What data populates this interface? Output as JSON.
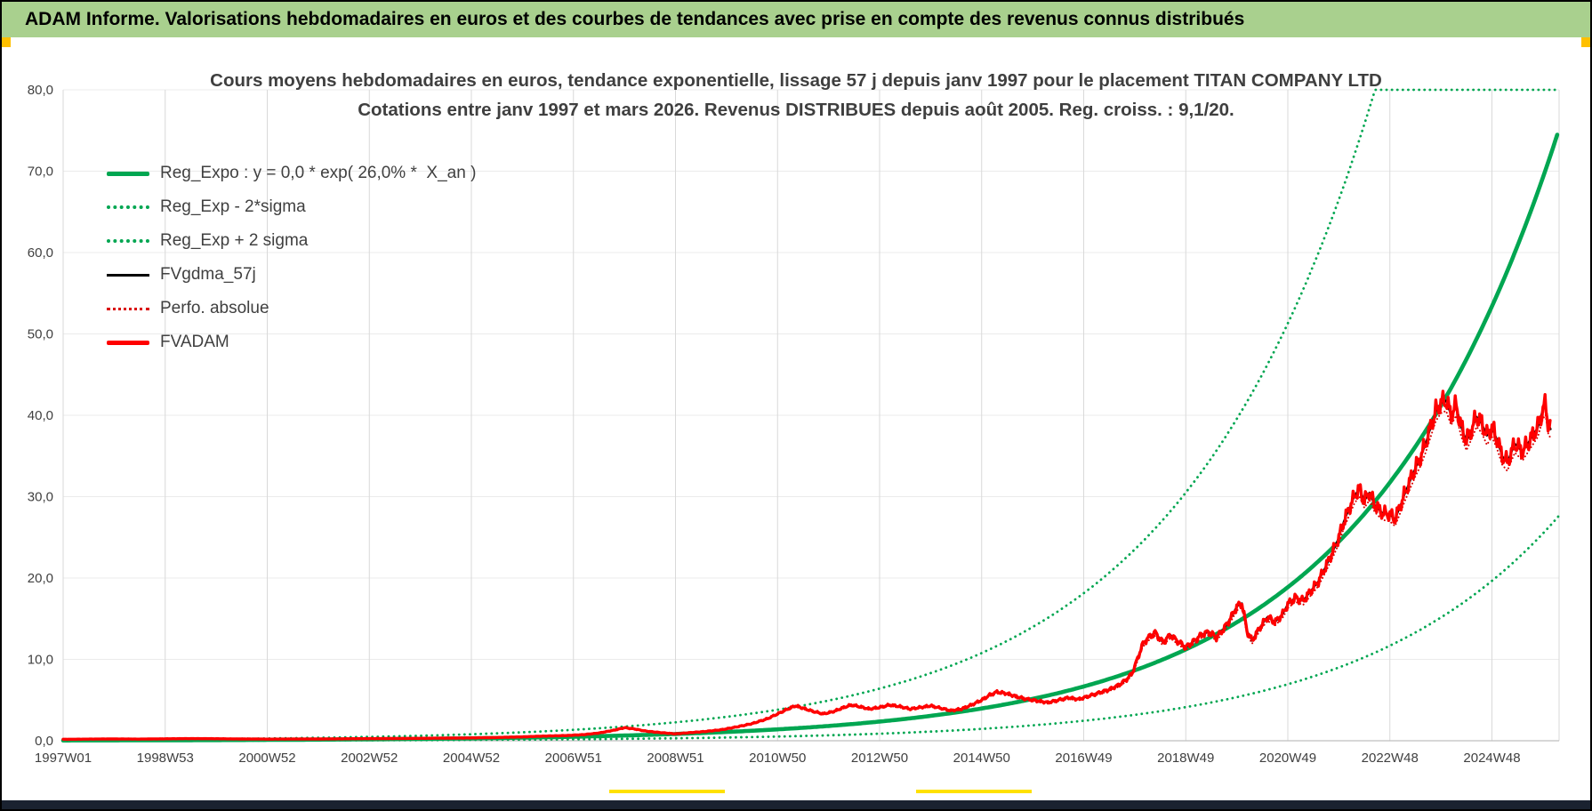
{
  "header": {
    "title": "ADAM Informe. Valorisations hebdomadaires en euros et des courbes de tendances avec prise en compte des revenus connus distribués"
  },
  "chart": {
    "title_line1": "Cours moyens hebdomadaires en euros, tendance exponentielle, lissage 57 j depuis janv 1997 pour le placement TITAN COMPANY LTD",
    "title_line2": "Cotations entre janv 1997 et mars 2026. Revenus DISTRIBUES depuis août 2005. Reg. croiss. : 9,1/20."
  },
  "legend": {
    "items": [
      {
        "label": "Reg_Expo : y = 0,0 * exp( 26,0% *  X_an )",
        "swatch": "green-solid"
      },
      {
        "label": "Reg_Exp - 2*sigma",
        "swatch": "green-dotted"
      },
      {
        "label": "Reg_Exp + 2 sigma",
        "swatch": "green-dotted"
      },
      {
        "label": "FVgdma_57j",
        "swatch": "black-solid"
      },
      {
        "label": "Perfo. absolue",
        "swatch": "red-dotted"
      },
      {
        "label": "FVADAM",
        "swatch": "red-solid"
      }
    ]
  },
  "colors": {
    "header_bg": "#A9D08E",
    "trend_green": "#00A651",
    "fvadam_red": "#FF0000",
    "smooth_black": "#000000",
    "accent_yellow": "#FFC000",
    "gridline": "#D9D9D9"
  },
  "chart_data": {
    "type": "line",
    "title": "Cours moyens hebdomadaires en euros, tendance exponentielle, lissage 57 j depuis janv 1997 pour le placement TITAN COMPANY LTD",
    "subtitle": "Cotations entre janv 1997 et mars 2026. Revenus DISTRIBUES depuis août 2005. Reg. croiss. : 9,1/20.",
    "x_axis": {
      "range_years": [
        1996.85,
        2026.35
      ],
      "gridlines": true,
      "ticks": [
        {
          "label": "1997W01",
          "year": 1997
        },
        {
          "label": "1998W53",
          "year": 1999
        },
        {
          "label": "2000W52",
          "year": 2001
        },
        {
          "label": "2002W52",
          "year": 2003
        },
        {
          "label": "2004W52",
          "year": 2005
        },
        {
          "label": "2006W51",
          "year": 2007
        },
        {
          "label": "2008W51",
          "year": 2009
        },
        {
          "label": "2010W50",
          "year": 2011
        },
        {
          "label": "2012W50",
          "year": 2013
        },
        {
          "label": "2014W50",
          "year": 2015
        },
        {
          "label": "2016W49",
          "year": 2017
        },
        {
          "label": "2018W49",
          "year": 2019
        },
        {
          "label": "2020W49",
          "year": 2021
        },
        {
          "label": "2022W48",
          "year": 2023
        },
        {
          "label": "2024W48",
          "year": 2025
        }
      ]
    },
    "y_axis": {
      "range": [
        0,
        80
      ],
      "gridlines": true,
      "ticks": [
        {
          "label": "0,0",
          "value": 0
        },
        {
          "label": "10,0",
          "value": 10
        },
        {
          "label": "20,0",
          "value": 20
        },
        {
          "label": "30,0",
          "value": 30
        },
        {
          "label": "40,0",
          "value": 40
        },
        {
          "label": "50,0",
          "value": 50
        },
        {
          "label": "60,0",
          "value": 60
        },
        {
          "label": "70,0",
          "value": 70
        },
        {
          "label": "80,0",
          "value": 80
        }
      ]
    },
    "regression": {
      "equation": "y = 0,0 * exp( 26,0% * X_an )",
      "a": 0.0368,
      "annual_rate": 0.26,
      "growth_score": "9,1/20"
    },
    "series": [
      {
        "id": "reg_expo",
        "label": "Reg_Expo",
        "model": "exp",
        "a": 0.0368,
        "k": 0.26,
        "mult": 1,
        "clamp_max": 80,
        "t_start": 1997.0,
        "t_end": 2026.25,
        "color": "#00A651",
        "dash": "none",
        "width": 4.6
      },
      {
        "id": "reg_exp_minus2sigma",
        "label": "Reg_Exp - 2*sigma",
        "model": "exp",
        "a": 0.0368,
        "k": 0.26,
        "mult": 0.368,
        "clamp_max": 80,
        "t_start": 1997.0,
        "t_end": 2026.3,
        "color": "#00A651",
        "dash": "0.1 6",
        "width": 2.8
      },
      {
        "id": "reg_exp_plus2sigma",
        "label": "Reg_Exp + 2 sigma",
        "model": "exp",
        "a": 0.0368,
        "k": 0.26,
        "mult": 2.718,
        "clamp_max": 80,
        "t_start": 1997.0,
        "t_end": 2026.3,
        "color": "#00A651",
        "dash": "0.1 6",
        "width": 2.8
      },
      {
        "id": "fvgdma_57j",
        "label": "FVgdma_57j",
        "model": "points",
        "scale": 1.0,
        "color": "#000000",
        "dash": "none",
        "width": 2.2
      },
      {
        "id": "perfo_absolue",
        "label": "Perfo. absolue",
        "model": "points",
        "scale": 0.97,
        "color": "#D90000",
        "dash": "0.1 4",
        "width": 2
      },
      {
        "id": "fvadam",
        "label": "FVADAM",
        "model": "points_noisy",
        "scale": 1.0,
        "noise_amp": 0.035,
        "noise_freq": 8,
        "color": "#FF0000",
        "dash": "none",
        "width": 3.4
      }
    ],
    "fvadam_points": [
      [
        1997.0,
        0.18
      ],
      [
        1997.5,
        0.2
      ],
      [
        1998.0,
        0.22
      ],
      [
        1998.5,
        0.2
      ],
      [
        1999.0,
        0.24
      ],
      [
        1999.5,
        0.26
      ],
      [
        2000.0,
        0.25
      ],
      [
        2000.5,
        0.22
      ],
      [
        2001.0,
        0.2
      ],
      [
        2001.5,
        0.21
      ],
      [
        2002.0,
        0.22
      ],
      [
        2002.5,
        0.24
      ],
      [
        2003.0,
        0.26
      ],
      [
        2003.5,
        0.28
      ],
      [
        2004.0,
        0.3
      ],
      [
        2004.5,
        0.32
      ],
      [
        2005.0,
        0.35
      ],
      [
        2005.5,
        0.4
      ],
      [
        2006.0,
        0.48
      ],
      [
        2006.3,
        0.55
      ],
      [
        2006.6,
        0.6
      ],
      [
        2006.9,
        0.65
      ],
      [
        2007.2,
        0.75
      ],
      [
        2007.5,
        0.95
      ],
      [
        2007.8,
        1.3
      ],
      [
        2008.0,
        1.6
      ],
      [
        2008.2,
        1.45
      ],
      [
        2008.4,
        1.2
      ],
      [
        2008.7,
        1.0
      ],
      [
        2009.0,
        0.85
      ],
      [
        2009.3,
        1.0
      ],
      [
        2009.6,
        1.15
      ],
      [
        2009.9,
        1.35
      ],
      [
        2010.2,
        1.7
      ],
      [
        2010.5,
        2.1
      ],
      [
        2010.8,
        2.7
      ],
      [
        2011.0,
        3.3
      ],
      [
        2011.2,
        3.9
      ],
      [
        2011.35,
        4.3
      ],
      [
        2011.5,
        4.0
      ],
      [
        2011.7,
        3.6
      ],
      [
        2011.9,
        3.3
      ],
      [
        2012.1,
        3.6
      ],
      [
        2012.3,
        4.1
      ],
      [
        2012.45,
        4.4
      ],
      [
        2012.6,
        4.2
      ],
      [
        2012.8,
        3.9
      ],
      [
        2013.0,
        4.1
      ],
      [
        2013.2,
        4.4
      ],
      [
        2013.4,
        4.2
      ],
      [
        2013.6,
        3.9
      ],
      [
        2013.8,
        4.1
      ],
      [
        2014.0,
        4.3
      ],
      [
        2014.2,
        4.0
      ],
      [
        2014.4,
        3.7
      ],
      [
        2014.6,
        3.9
      ],
      [
        2014.8,
        4.4
      ],
      [
        2015.0,
        5.0
      ],
      [
        2015.15,
        5.6
      ],
      [
        2015.3,
        6.0
      ],
      [
        2015.5,
        5.8
      ],
      [
        2015.7,
        5.4
      ],
      [
        2015.9,
        5.1
      ],
      [
        2016.1,
        4.9
      ],
      [
        2016.3,
        4.7
      ],
      [
        2016.5,
        5.0
      ],
      [
        2016.7,
        5.3
      ],
      [
        2016.9,
        5.1
      ],
      [
        2017.1,
        5.5
      ],
      [
        2017.3,
        5.9
      ],
      [
        2017.5,
        6.3
      ],
      [
        2017.7,
        6.9
      ],
      [
        2017.85,
        7.6
      ],
      [
        2017.95,
        8.3
      ],
      [
        2018.05,
        10.0
      ],
      [
        2018.15,
        11.8
      ],
      [
        2018.25,
        12.6
      ],
      [
        2018.4,
        13.3
      ],
      [
        2018.55,
        12.1
      ],
      [
        2018.7,
        13.0
      ],
      [
        2018.85,
        12.2
      ],
      [
        2019.0,
        11.5
      ],
      [
        2019.15,
        12.2
      ],
      [
        2019.3,
        13.0
      ],
      [
        2019.45,
        13.4
      ],
      [
        2019.6,
        12.7
      ],
      [
        2019.75,
        13.8
      ],
      [
        2019.9,
        15.3
      ],
      [
        2020.0,
        16.5
      ],
      [
        2020.1,
        16.9
      ],
      [
        2020.2,
        13.5
      ],
      [
        2020.3,
        12.3
      ],
      [
        2020.45,
        13.9
      ],
      [
        2020.6,
        15.2
      ],
      [
        2020.75,
        14.6
      ],
      [
        2020.9,
        15.6
      ],
      [
        2021.0,
        16.8
      ],
      [
        2021.15,
        17.6
      ],
      [
        2021.3,
        17.2
      ],
      [
        2021.45,
        18.4
      ],
      [
        2021.6,
        19.6
      ],
      [
        2021.75,
        21.5
      ],
      [
        2021.9,
        23.5
      ],
      [
        2022.0,
        25.0
      ],
      [
        2022.1,
        27.0
      ],
      [
        2022.2,
        28.5
      ],
      [
        2022.3,
        30.0
      ],
      [
        2022.4,
        31.0
      ],
      [
        2022.5,
        29.5
      ],
      [
        2022.6,
        30.5
      ],
      [
        2022.7,
        29.0
      ],
      [
        2022.85,
        28.0
      ],
      [
        2023.0,
        27.8
      ],
      [
        2023.1,
        27.2
      ],
      [
        2023.2,
        28.8
      ],
      [
        2023.3,
        30.5
      ],
      [
        2023.4,
        32.0
      ],
      [
        2023.5,
        33.5
      ],
      [
        2023.6,
        34.8
      ],
      [
        2023.7,
        36.5
      ],
      [
        2023.8,
        38.5
      ],
      [
        2023.9,
        40.5
      ],
      [
        2024.0,
        41.5
      ],
      [
        2024.1,
        41.8
      ],
      [
        2024.2,
        40.0
      ],
      [
        2024.3,
        41.2
      ],
      [
        2024.4,
        38.5
      ],
      [
        2024.5,
        36.8
      ],
      [
        2024.6,
        38.2
      ],
      [
        2024.7,
        39.8
      ],
      [
        2024.8,
        39.0
      ],
      [
        2024.9,
        37.5
      ],
      [
        2025.0,
        38.5
      ],
      [
        2025.1,
        37.0
      ],
      [
        2025.2,
        35.0
      ],
      [
        2025.3,
        34.2
      ],
      [
        2025.45,
        36.5
      ],
      [
        2025.6,
        35.5
      ],
      [
        2025.75,
        37.0
      ],
      [
        2025.9,
        38.5
      ],
      [
        2026.0,
        40.8
      ],
      [
        2026.05,
        41.3
      ],
      [
        2026.1,
        39.0
      ],
      [
        2026.15,
        38.3
      ]
    ]
  }
}
